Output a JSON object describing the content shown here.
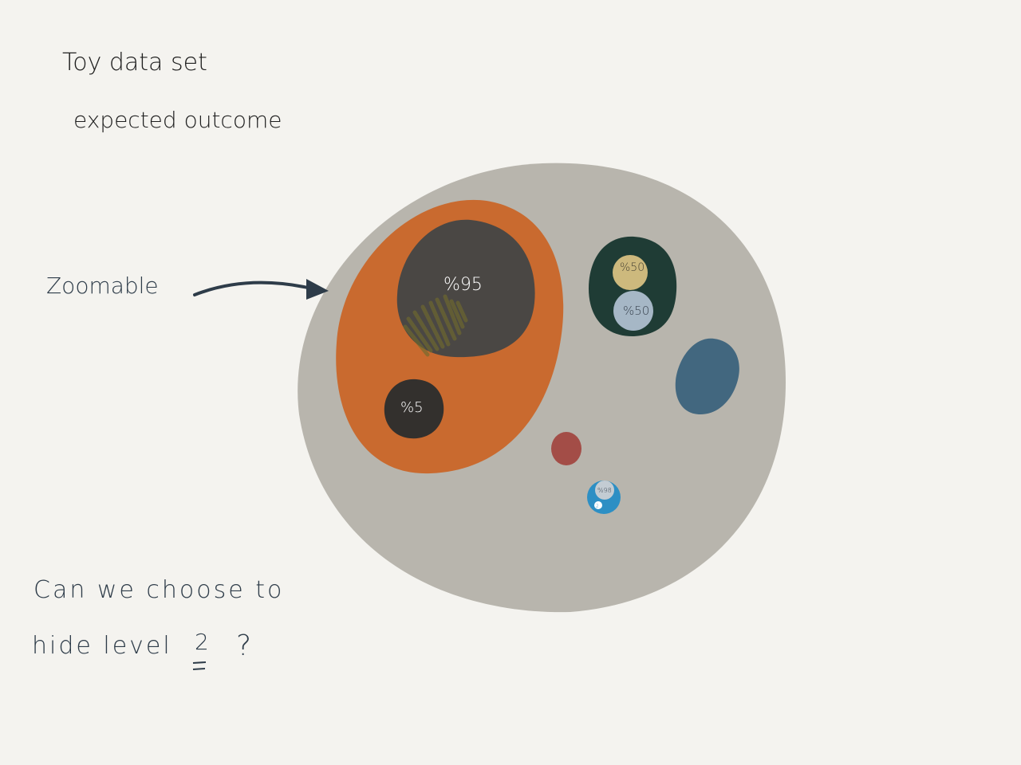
{
  "title": {
    "line1": "Toy data set",
    "line2": "expected outcome"
  },
  "annotation": {
    "label": "Zoomable"
  },
  "question": {
    "line1": "Can we choose to",
    "line2_prefix": "hide level",
    "level": "2",
    "mark": "?"
  },
  "bubbles": {
    "large_percent": "%95",
    "small_percent": "%5",
    "green_top_percent": "%50",
    "green_bottom_percent": "%50",
    "blue_small_percent": "%98",
    "blue_small_inner_percent": "2"
  },
  "colors": {
    "background": "#f4f3ef",
    "root": "#b8b5ad",
    "orange": "#c96a2f",
    "large_dark": "#4a4744",
    "small_dark": "#33302d",
    "green_group": "#1f3c35",
    "tan": "#cdb97d",
    "light_blue": "#a6b7c6",
    "steel_blue": "#42677f",
    "red": "#a34d47",
    "bright_blue": "#2d8fc4",
    "ink": "#2e3c49"
  }
}
